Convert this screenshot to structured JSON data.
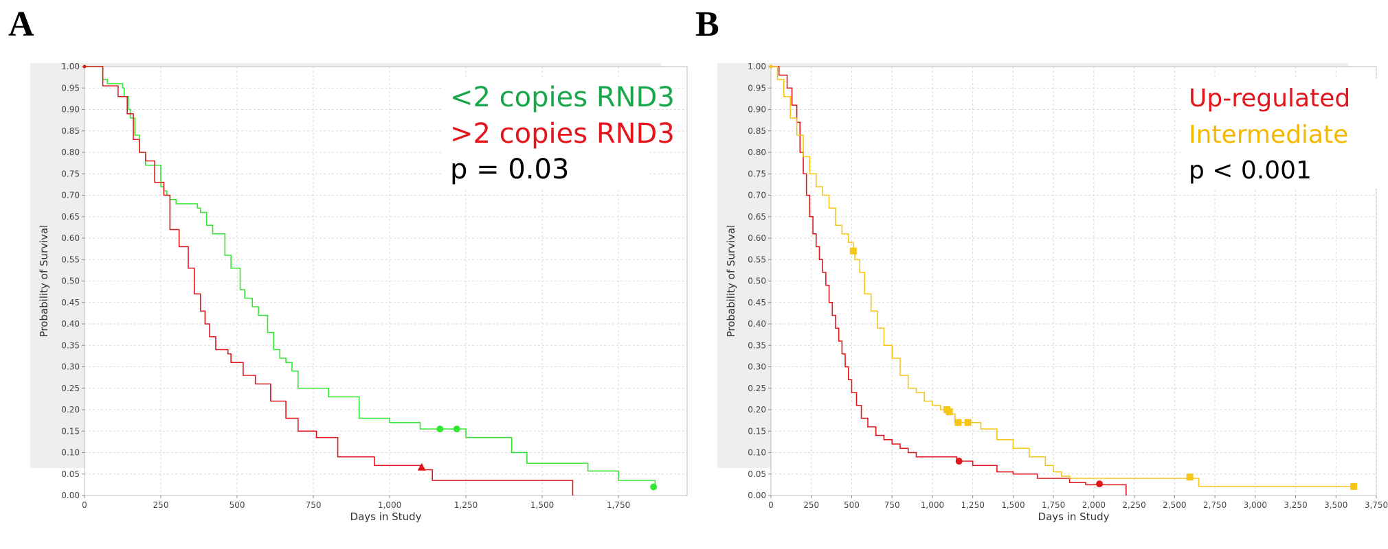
{
  "panels": [
    {
      "letter": "A"
    },
    {
      "letter": "B"
    }
  ],
  "chart_data": [
    {
      "type": "line",
      "xlabel": "Days in Study",
      "ylabel": "Probability of Survival",
      "xlim": [
        0,
        1975
      ],
      "ylim": [
        0,
        1
      ],
      "x_ticks": [
        "0",
        "250",
        "500",
        "750",
        "1,000",
        "1,250",
        "1,500",
        "1,750"
      ],
      "x_tick_values": [
        0,
        250,
        500,
        750,
        1000,
        1250,
        1500,
        1750
      ],
      "y_ticks": [
        "0.00",
        "0.05",
        "0.10",
        "0.15",
        "0.20",
        "0.25",
        "0.30",
        "0.35",
        "0.40",
        "0.45",
        "0.50",
        "0.55",
        "0.60",
        "0.65",
        "0.70",
        "0.75",
        "0.80",
        "0.85",
        "0.90",
        "0.95",
        "1.00"
      ],
      "grid": true,
      "legend_position": "top-right",
      "annotation_lines": [
        {
          "text": "<2 copies RND3",
          "color": "#1aa64b"
        },
        {
          "text": ">2 copies RND3",
          "color": "#e3161c"
        },
        {
          "text": "p = 0.03",
          "color": "#000000"
        }
      ],
      "annotation_font": "serif",
      "series": [
        {
          "color": "#33e633",
          "marker": "circle",
          "x": [
            0,
            60,
            60,
            75,
            90,
            125,
            130,
            145,
            150,
            165,
            180,
            200,
            250,
            260,
            270,
            280,
            300,
            350,
            370,
            380,
            400,
            420,
            450,
            460,
            480,
            500,
            510,
            525,
            550,
            570,
            600,
            620,
            640,
            660,
            680,
            700,
            750,
            800,
            850,
            900,
            1000,
            1050,
            1100,
            1250,
            1300,
            1400,
            1450,
            1650,
            1750,
            1870
          ],
          "y": [
            1.0,
            1.0,
            0.97,
            0.96,
            0.96,
            0.95,
            0.93,
            0.9,
            0.88,
            0.84,
            0.8,
            0.77,
            0.72,
            0.71,
            0.7,
            0.69,
            0.68,
            0.68,
            0.67,
            0.66,
            0.63,
            0.61,
            0.61,
            0.56,
            0.53,
            0.53,
            0.48,
            0.46,
            0.44,
            0.42,
            0.38,
            0.34,
            0.32,
            0.31,
            0.29,
            0.25,
            0.25,
            0.23,
            0.23,
            0.18,
            0.17,
            0.17,
            0.155,
            0.135,
            0.135,
            0.1,
            0.075,
            0.057,
            0.035,
            0.02
          ],
          "censored": [
            [
              1165,
              0.155
            ],
            [
              1220,
              0.155
            ],
            [
              1865,
              0.02
            ]
          ]
        },
        {
          "color": "#e3161c",
          "marker": "triangle",
          "x": [
            0,
            60,
            60,
            110,
            140,
            160,
            180,
            200,
            230,
            260,
            280,
            310,
            340,
            360,
            380,
            395,
            410,
            430,
            470,
            480,
            520,
            560,
            610,
            660,
            700,
            760,
            830,
            950,
            1100,
            1140,
            1600
          ],
          "y": [
            1.0,
            1.0,
            0.955,
            0.93,
            0.89,
            0.83,
            0.8,
            0.78,
            0.73,
            0.7,
            0.62,
            0.58,
            0.53,
            0.47,
            0.43,
            0.4,
            0.37,
            0.34,
            0.33,
            0.31,
            0.28,
            0.26,
            0.22,
            0.18,
            0.15,
            0.135,
            0.09,
            0.07,
            0.06,
            0.035,
            0.0
          ],
          "censored": [
            [
              1105,
              0.066
            ]
          ]
        }
      ]
    },
    {
      "type": "line",
      "xlabel": "Days in Study",
      "ylabel": "Probability of Survival",
      "xlim": [
        0,
        3750
      ],
      "ylim": [
        0,
        1
      ],
      "x_ticks": [
        "0",
        "250",
        "500",
        "750",
        "1,000",
        "1,250",
        "1,500",
        "1,750",
        "2,000",
        "2,250",
        "2,500",
        "2,750",
        "3,000",
        "3,250",
        "3,500",
        "3,750"
      ],
      "x_tick_values": [
        0,
        250,
        500,
        750,
        1000,
        1250,
        1500,
        1750,
        2000,
        2250,
        2500,
        2750,
        3000,
        3250,
        3500,
        3750
      ],
      "y_ticks": [
        "0.00",
        "0.05",
        "0.10",
        "0.15",
        "0.20",
        "0.25",
        "0.30",
        "0.35",
        "0.40",
        "0.45",
        "0.50",
        "0.55",
        "0.60",
        "0.65",
        "0.70",
        "0.75",
        "0.80",
        "0.85",
        "0.90",
        "0.95",
        "1.00"
      ],
      "grid": true,
      "legend_position": "top-right",
      "annotation_lines": [
        {
          "text": "Up-regulated",
          "color": "#e3161c"
        },
        {
          "text": "Intermediate",
          "color": "#f5b800"
        },
        {
          "text": "p < 0.001",
          "color": "#000000"
        }
      ],
      "annotation_font": "sans",
      "series": [
        {
          "color": "#e3161c",
          "marker": "circle",
          "x": [
            0,
            50,
            100,
            130,
            160,
            180,
            200,
            220,
            240,
            260,
            280,
            300,
            320,
            340,
            360,
            380,
            400,
            420,
            440,
            460,
            480,
            500,
            530,
            560,
            600,
            650,
            700,
            750,
            800,
            850,
            900,
            950,
            1000,
            1150,
            1250,
            1400,
            1500,
            1650,
            1750,
            1850,
            1950,
            2200
          ],
          "y": [
            1.0,
            0.98,
            0.95,
            0.91,
            0.87,
            0.8,
            0.75,
            0.7,
            0.65,
            0.61,
            0.58,
            0.55,
            0.52,
            0.49,
            0.45,
            0.42,
            0.39,
            0.36,
            0.33,
            0.3,
            0.27,
            0.24,
            0.21,
            0.18,
            0.16,
            0.14,
            0.13,
            0.12,
            0.11,
            0.1,
            0.09,
            0.09,
            0.09,
            0.08,
            0.07,
            0.055,
            0.05,
            0.04,
            0.04,
            0.03,
            0.025,
            0.0
          ],
          "censored": [
            [
              1165,
              0.08
            ],
            [
              2035,
              0.027
            ]
          ]
        },
        {
          "color": "#f5c518",
          "marker": "square",
          "x": [
            0,
            40,
            80,
            120,
            160,
            200,
            240,
            280,
            320,
            360,
            400,
            440,
            480,
            510,
            520,
            550,
            580,
            620,
            660,
            700,
            750,
            800,
            850,
            900,
            950,
            1000,
            1050,
            1100,
            1140,
            1160,
            1200,
            1300,
            1400,
            1500,
            1600,
            1700,
            1750,
            1800,
            1850,
            2600,
            2650,
            3620
          ],
          "y": [
            1.0,
            0.97,
            0.93,
            0.88,
            0.84,
            0.79,
            0.75,
            0.72,
            0.7,
            0.67,
            0.63,
            0.61,
            0.59,
            0.57,
            0.55,
            0.52,
            0.47,
            0.43,
            0.39,
            0.35,
            0.32,
            0.28,
            0.25,
            0.24,
            0.22,
            0.21,
            0.2,
            0.19,
            0.17,
            0.17,
            0.17,
            0.155,
            0.13,
            0.11,
            0.09,
            0.07,
            0.055,
            0.045,
            0.04,
            0.04,
            0.021,
            0.021
          ],
          "censored": [
            [
              510,
              0.57
            ],
            [
              1090,
              0.2
            ],
            [
              1105,
              0.195
            ],
            [
              1160,
              0.17
            ],
            [
              1220,
              0.17
            ],
            [
              2595,
              0.043
            ],
            [
              3610,
              0.021
            ]
          ]
        }
      ]
    }
  ]
}
